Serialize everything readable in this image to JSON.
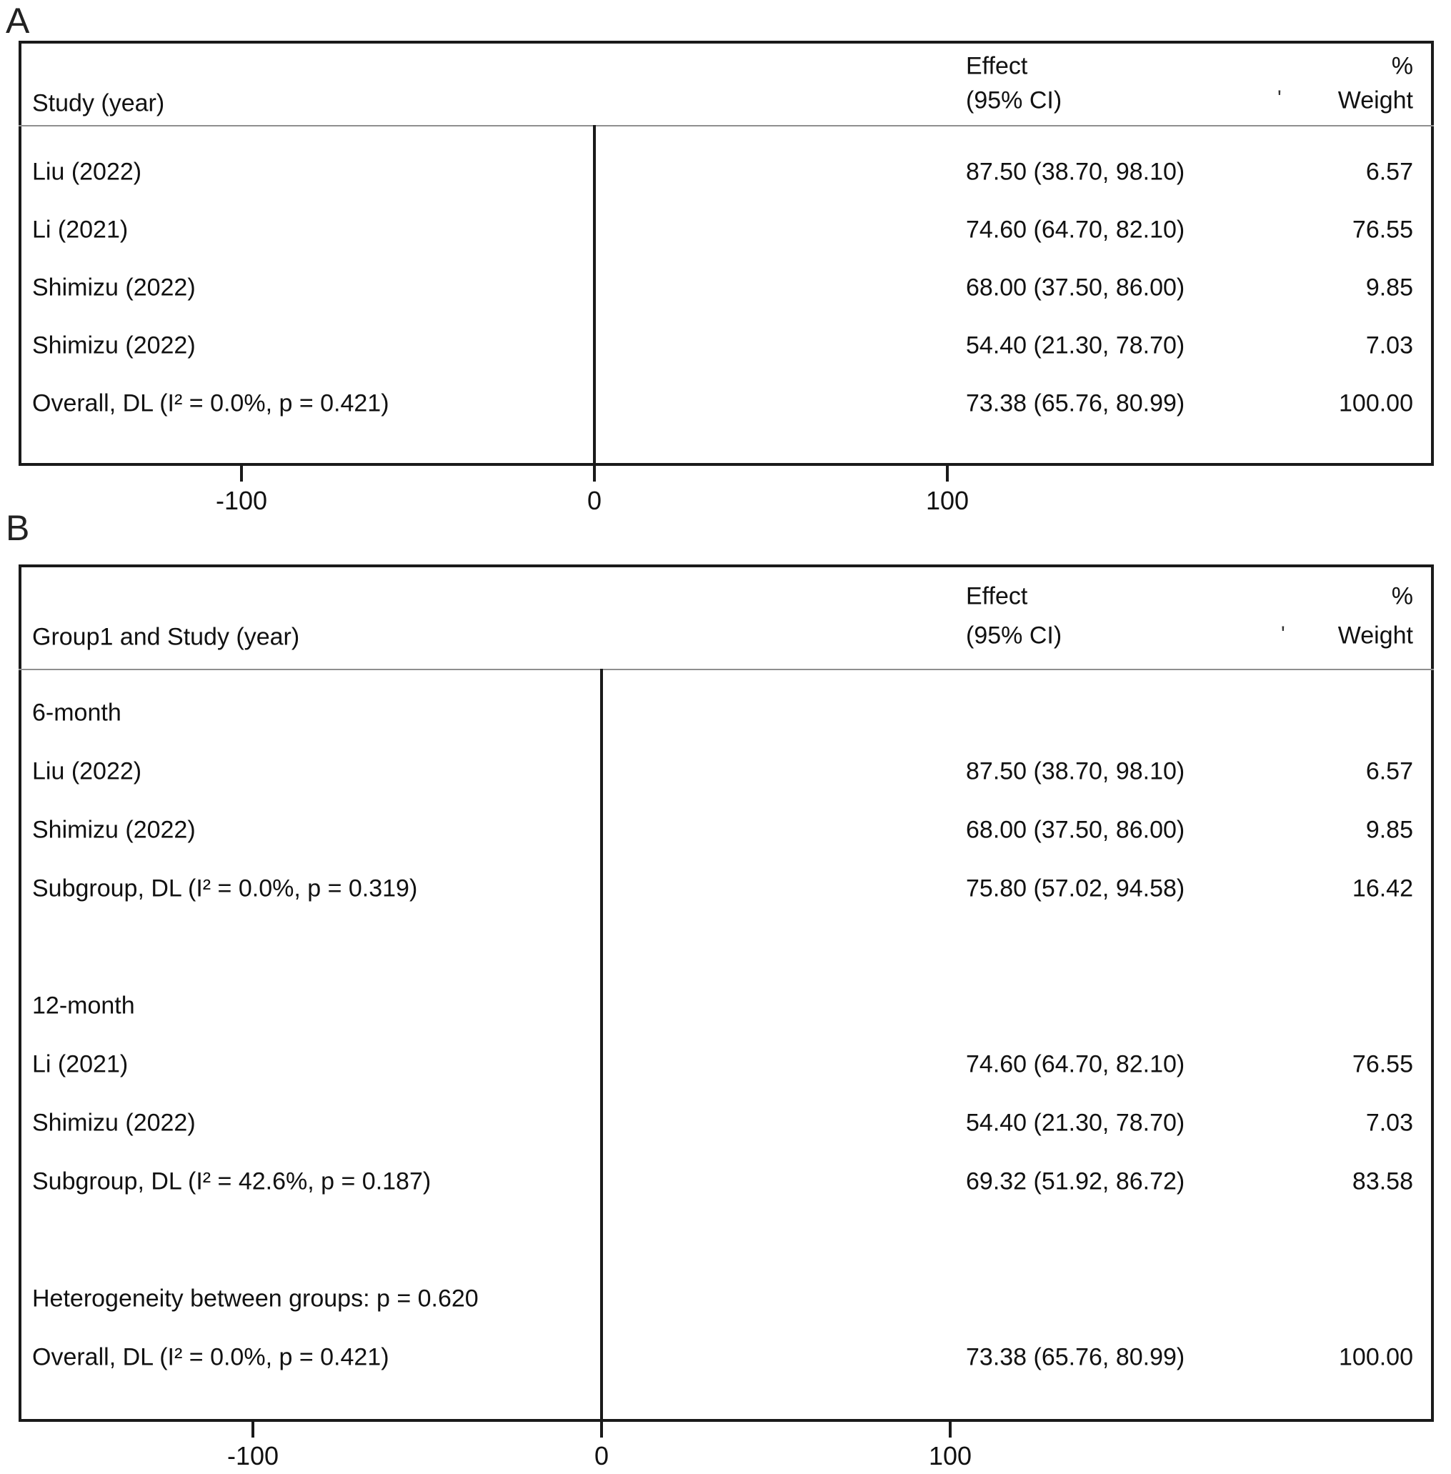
{
  "figure": {
    "panel_labels": [
      "A",
      "B"
    ],
    "colors": {
      "diamond_outline": "#28287d",
      "reference_dashed_line": "#9e3036",
      "ci_line": "#1a1a1a",
      "weight_box": "#c6c6c6",
      "text": "#111111",
      "border": "#1a1a1a",
      "separator": "#8f8f8f"
    }
  },
  "chart_data": [
    {
      "type": "scatter",
      "chart_kind": "forest-plot",
      "panel": "A",
      "col_header": "Study (year)",
      "effect_header": [
        "Effect",
        "(95% CI)"
      ],
      "weight_header": [
        "%",
        "Weight"
      ],
      "artifact_mark": "'",
      "x_axis": {
        "range": [
          -163,
          238
        ],
        "ticks": [
          {
            "value": -100,
            "label": "-100"
          },
          {
            "value": 0,
            "label": "0"
          },
          {
            "value": 100,
            "label": "100"
          }
        ]
      },
      "null_line_value": 0,
      "reference_line_value": 73.38,
      "rows": [
        {
          "type": "study",
          "slot": 0,
          "label": "Liu (2022)",
          "effect": 87.5,
          "ci_low": 38.7,
          "ci_high": 98.1,
          "weight": 6.57,
          "effect_text": "87.50 (38.70, 98.10)",
          "weight_text": "6.57",
          "marker_box": 20
        },
        {
          "type": "study",
          "slot": 1,
          "label": "Li (2021)",
          "effect": 74.6,
          "ci_low": 64.7,
          "ci_high": 82.1,
          "weight": 76.55,
          "effect_text": "74.60 (64.70, 82.10)",
          "weight_text": "76.55",
          "marker_box": 57
        },
        {
          "type": "study",
          "slot": 2,
          "label": "Shimizu (2022)",
          "effect": 68.0,
          "ci_low": 37.5,
          "ci_high": 86.0,
          "weight": 9.85,
          "effect_text": "68.00 (37.50, 86.00)",
          "weight_text": "9.85",
          "marker_box": 32
        },
        {
          "type": "study",
          "slot": 3,
          "label": "Shimizu (2022)",
          "effect": 54.4,
          "ci_low": 21.3,
          "ci_high": 78.7,
          "weight": 7.03,
          "effect_text": "54.40 (21.30, 78.70)",
          "weight_text": "7.03",
          "marker_box": 24
        },
        {
          "type": "overall",
          "slot": 4,
          "label": "Overall, DL (I² = 0.0%, p = 0.421)",
          "effect": 73.38,
          "ci_low": 65.76,
          "ci_high": 80.99,
          "weight": 100.0,
          "effect_text": "73.38 (65.76, 80.99)",
          "weight_text": "100.00"
        }
      ]
    },
    {
      "type": "scatter",
      "chart_kind": "forest-plot",
      "panel": "B",
      "col_header": "Group1 and Study (year)",
      "effect_header": [
        "Effect",
        "(95% CI)"
      ],
      "weight_header": [
        "%",
        "Weight"
      ],
      "artifact_mark": "'",
      "x_axis": {
        "range": [
          -167,
          239
        ],
        "ticks": [
          {
            "value": -100,
            "label": "-100"
          },
          {
            "value": 0,
            "label": "0"
          },
          {
            "value": 100,
            "label": "100"
          }
        ]
      },
      "null_line_value": 0,
      "reference_line_value": 73.38,
      "rows": [
        {
          "type": "group",
          "slot": 0,
          "label": "6-month"
        },
        {
          "type": "study",
          "slot": 1,
          "label": "Liu (2022)",
          "effect": 87.5,
          "ci_low": 38.7,
          "ci_high": 98.1,
          "weight": 6.57,
          "effect_text": "87.50 (38.70, 98.10)",
          "weight_text": "6.57",
          "marker_box": 20
        },
        {
          "type": "study",
          "slot": 2,
          "label": "Shimizu (2022)",
          "effect": 68.0,
          "ci_low": 37.5,
          "ci_high": 86.0,
          "weight": 9.85,
          "effect_text": "68.00 (37.50, 86.00)",
          "weight_text": "9.85",
          "marker_box": 32
        },
        {
          "type": "subgroup",
          "slot": 3,
          "label": "Subgroup, DL (I² = 0.0%, p = 0.319)",
          "effect": 75.8,
          "ci_low": 57.02,
          "ci_high": 94.58,
          "weight": 16.42,
          "effect_text": "75.80 (57.02, 94.58)",
          "weight_text": "16.42"
        },
        {
          "type": "group",
          "slot": 5,
          "label": "12-month"
        },
        {
          "type": "study",
          "slot": 6,
          "label": "Li (2021)",
          "effect": 74.6,
          "ci_low": 64.7,
          "ci_high": 82.1,
          "weight": 76.55,
          "effect_text": "74.60 (64.70, 82.10)",
          "weight_text": "76.55",
          "marker_box": 57
        },
        {
          "type": "study",
          "slot": 7,
          "label": "Shimizu (2022)",
          "effect": 54.4,
          "ci_low": 21.3,
          "ci_high": 78.7,
          "weight": 7.03,
          "effect_text": "54.40 (21.30, 78.70)",
          "weight_text": "7.03",
          "marker_box": 24
        },
        {
          "type": "subgroup",
          "slot": 8,
          "label": "Subgroup, DL (I² = 42.6%, p = 0.187)",
          "effect": 69.32,
          "ci_low": 51.92,
          "ci_high": 86.72,
          "weight": 83.58,
          "effect_text": "69.32 (51.92, 86.72)",
          "weight_text": "83.58"
        },
        {
          "type": "note",
          "slot": 10,
          "label": "Heterogeneity between groups: p = 0.620"
        },
        {
          "type": "overall",
          "slot": 11,
          "label": "Overall, DL (I² = 0.0%, p = 0.421)",
          "effect": 73.38,
          "ci_low": 65.76,
          "ci_high": 80.99,
          "weight": 100.0,
          "effect_text": "73.38 (65.76, 80.99)",
          "weight_text": "100.00"
        }
      ]
    }
  ]
}
